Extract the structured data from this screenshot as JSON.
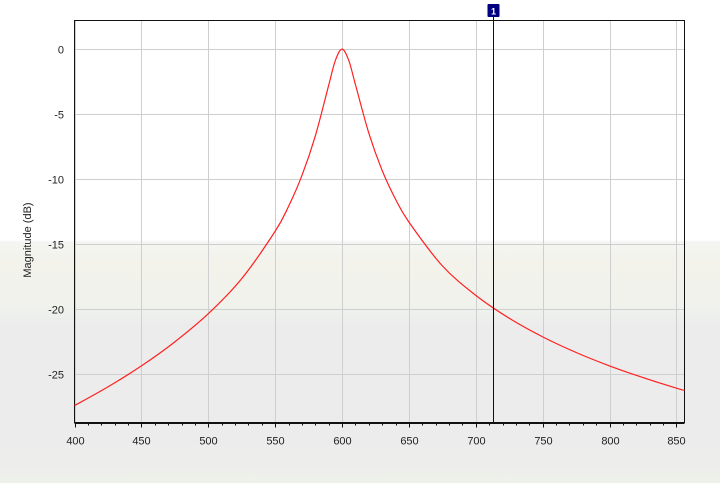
{
  "chart_data": {
    "type": "line",
    "title": "",
    "xlabel": "",
    "ylabel": "Magnitude (dB)",
    "xlim": [
      400,
      856
    ],
    "ylim": [
      -28.7,
      2.2
    ],
    "grid": true,
    "x_ticks": [
      400,
      450,
      500,
      550,
      600,
      650,
      700,
      750,
      800,
      850
    ],
    "y_ticks": [
      0,
      -5,
      -10,
      -15,
      -20,
      -25
    ],
    "series": [
      {
        "color": "#ff2020",
        "x": [
          400,
          425,
          450,
          475,
          500,
          525,
          550,
          560,
          570,
          580,
          590,
          595,
          600,
          605,
          610,
          620,
          630,
          640,
          650,
          675,
          700,
          725,
          750,
          775,
          800,
          825,
          850,
          856
        ],
        "y": [
          -27.4,
          -25.96,
          -24.35,
          -22.5,
          -20.34,
          -17.64,
          -14.0,
          -12.09,
          -9.72,
          -6.68,
          -2.78,
          -0.87,
          0,
          -0.86,
          -2.72,
          -6.45,
          -9.33,
          -11.54,
          -13.3,
          -16.66,
          -18.93,
          -20.69,
          -22.12,
          -23.32,
          -24.35,
          -25.25,
          -26.06,
          -26.23
        ]
      }
    ],
    "markers": [
      {
        "label": "1",
        "x": 713,
        "color": "#000080"
      }
    ]
  }
}
